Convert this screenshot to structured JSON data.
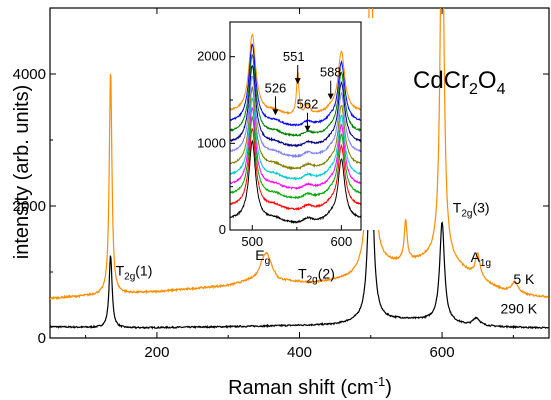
{
  "chart_data": [
    {
      "type": "line",
      "xlabel": "Raman shift (cm",
      "xlabel_sup": "-1",
      "xlabel_close": ")",
      "ylabel": "intensity (arb. units)",
      "xlim": [
        50,
        750
      ],
      "ylim": [
        0,
        5000
      ],
      "x_ticks": [
        200,
        400,
        600
      ],
      "y_ticks": [
        0,
        2000,
        4000
      ],
      "compound": {
        "main": "CdCr",
        "sub1": "2",
        "mid": "O",
        "sub2": "4"
      },
      "series": [
        {
          "name": "5 K",
          "color": "#ff8c00",
          "baseline": [
            [
              50,
              600
            ],
            [
              120,
              650
            ],
            [
              200,
              700
            ],
            [
              300,
              790
            ],
            [
              340,
              880
            ],
            [
              355,
              1030
            ],
            [
              370,
              860
            ],
            [
              420,
              830
            ],
            [
              470,
              900
            ],
            [
              520,
              1100
            ],
            [
              560,
              1150
            ],
            [
              600,
              1250
            ],
            [
              650,
              880
            ],
            [
              700,
              650
            ],
            [
              750,
              620
            ]
          ],
          "peaks": [
            [
              135,
              3400,
              2.2
            ],
            [
              352,
              280,
              9
            ],
            [
              500,
              6000,
              3.5
            ],
            [
              549,
              600,
              2.5
            ],
            [
              600,
              6000,
              3
            ],
            [
              650,
              380,
              4
            ],
            [
              702,
              200,
              6
            ]
          ]
        },
        {
          "name": "290 K",
          "color": "#000000",
          "baseline": [
            [
              50,
              170
            ],
            [
              150,
              150
            ],
            [
              300,
              170
            ],
            [
              450,
              200
            ],
            [
              490,
              260
            ],
            [
              540,
              280
            ],
            [
              590,
              270
            ],
            [
              640,
              180
            ],
            [
              750,
              150
            ]
          ],
          "peaks": [
            [
              135,
              1100,
              2.5
            ],
            [
              500,
              2900,
              4
            ],
            [
              600,
              1500,
              4
            ],
            [
              648,
              120,
              6
            ]
          ]
        }
      ],
      "annotations": [
        {
          "main": "T",
          "sub": "2g",
          "tail": "(1)",
          "x": 142,
          "y": 950
        },
        {
          "main": "E",
          "sub": "g",
          "tail": "",
          "x": 338,
          "y": 1180
        },
        {
          "main": "T",
          "sub": "2g",
          "tail": "(2)",
          "x": 398,
          "y": 900
        },
        {
          "main": "T",
          "sub": "2g",
          "tail": "(3)",
          "x": 615,
          "y": 1900
        },
        {
          "main": "A",
          "sub": "1g",
          "tail": "",
          "x": 640,
          "y": 1150
        },
        {
          "main": "5 K",
          "sub": "",
          "tail": "",
          "x": 700,
          "y": 820
        },
        {
          "main": "290 K",
          "sub": "",
          "tail": "",
          "x": 682,
          "y": 370
        }
      ]
    },
    {
      "type": "line",
      "title": "inset",
      "xlim": [
        475,
        622
      ],
      "ylim": [
        0,
        2400
      ],
      "x_ticks": [
        500,
        600
      ],
      "y_ticks": [
        0,
        1000,
        2000
      ],
      "series_colors": [
        "#000000",
        "#ff0000",
        "#00aa00",
        "#ff00ff",
        "#00cccc",
        "#808000",
        "#8080ff",
        "#000080",
        "#008000",
        "#0000ff",
        "#ff8c00"
      ],
      "offsets": [
        0,
        150,
        280,
        390,
        500,
        620,
        760,
        880,
        1000,
        1120,
        1240
      ],
      "marks": [
        {
          "label": "526",
          "x": 526
        },
        {
          "label": "551",
          "x": 551
        },
        {
          "label": "562",
          "x": 562
        },
        {
          "label": "588",
          "x": 588
        }
      ]
    }
  ]
}
